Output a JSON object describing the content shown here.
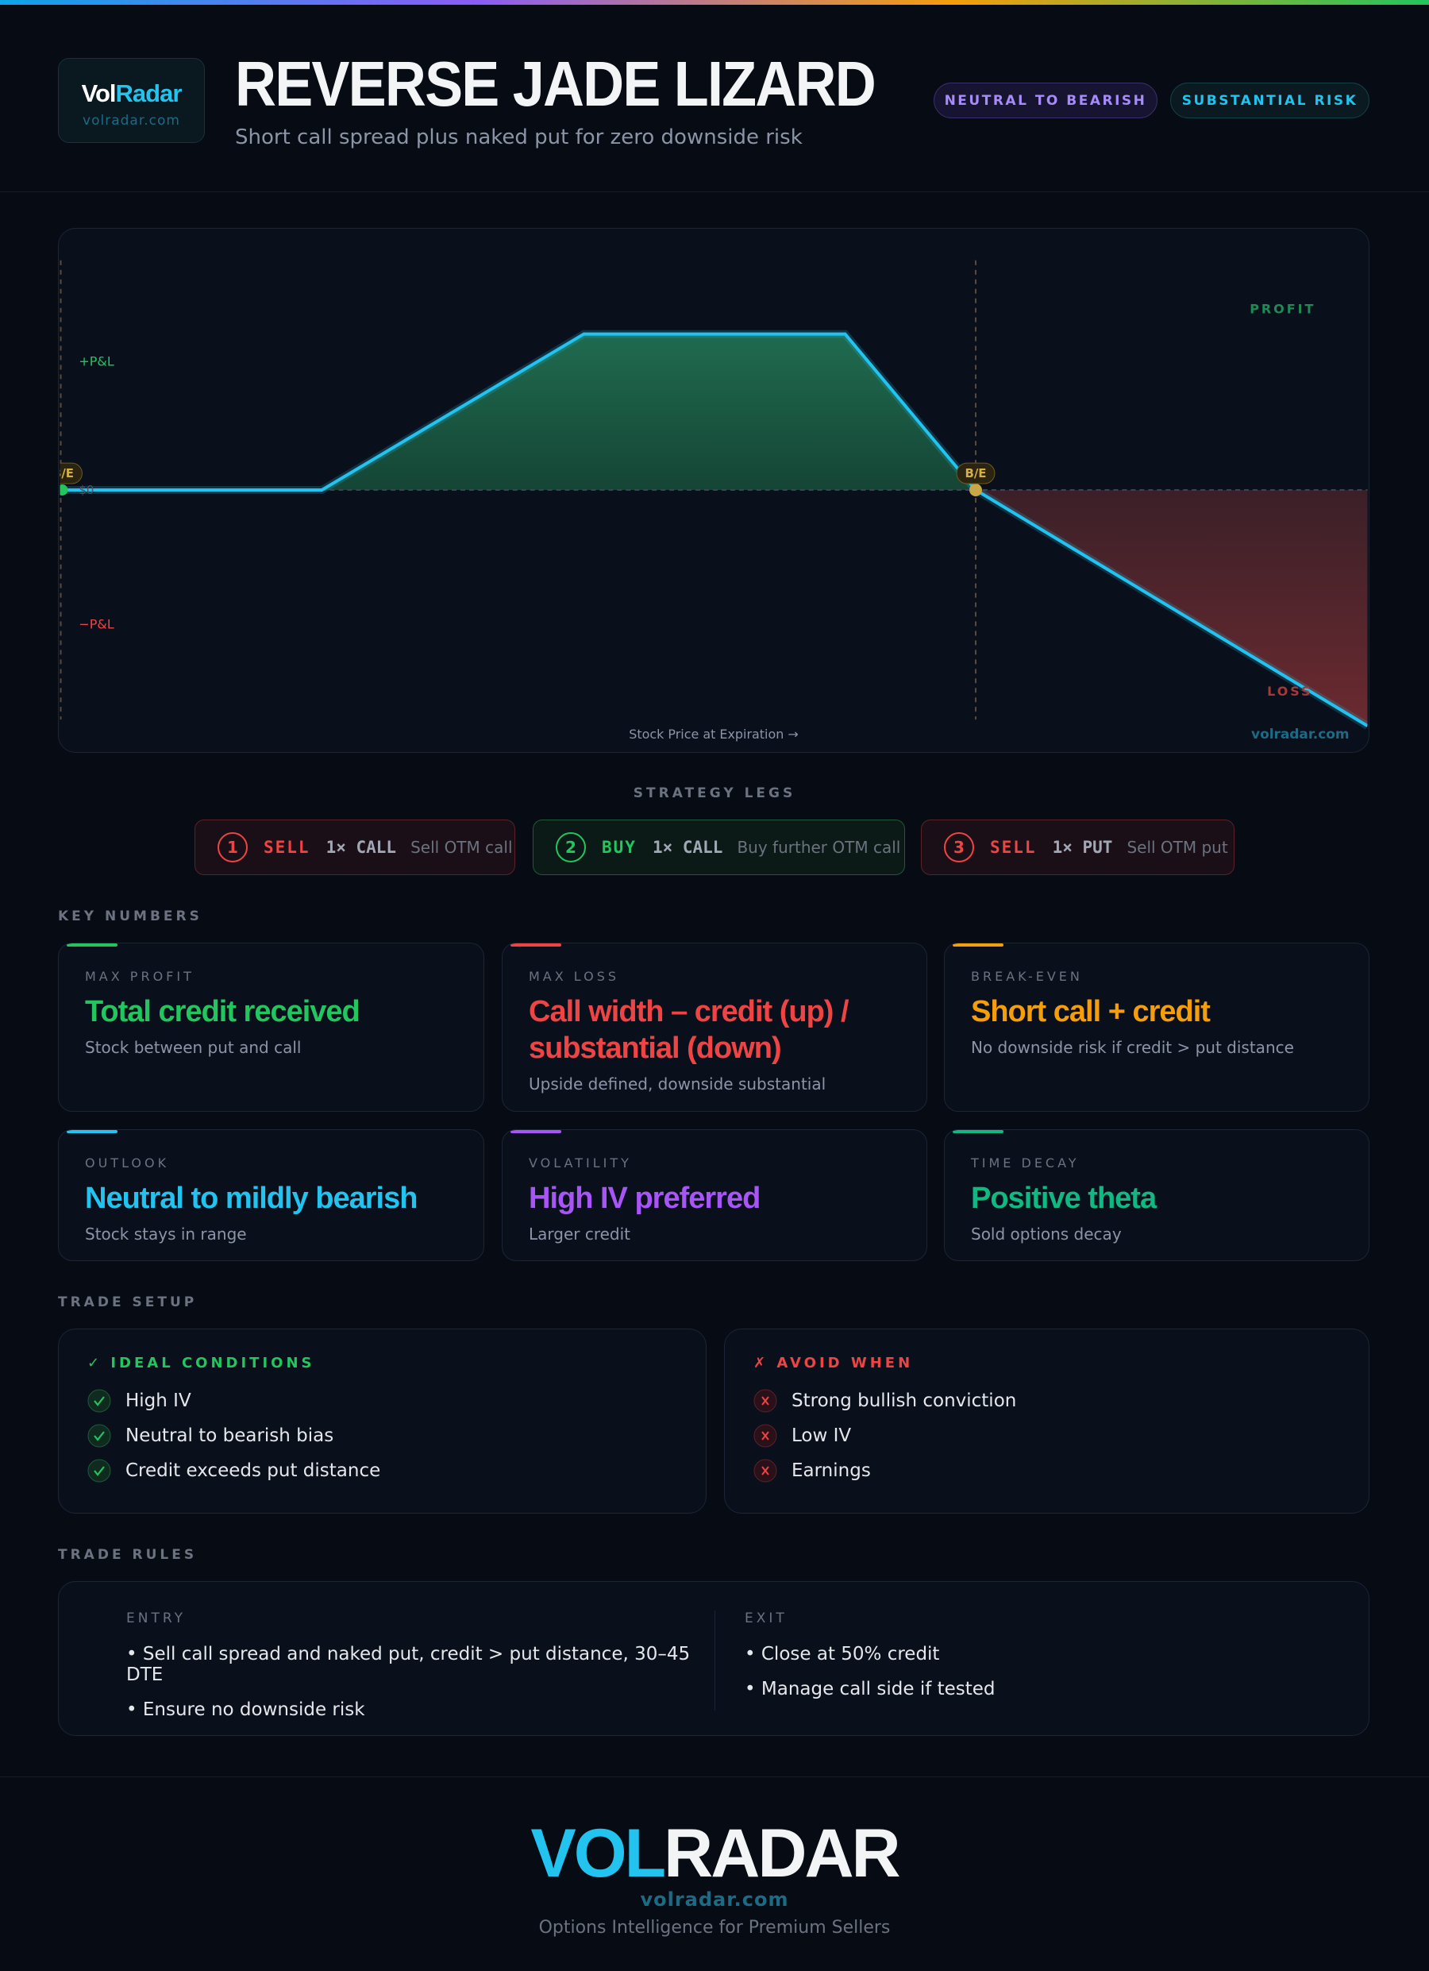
{
  "header": {
    "logo_vol": "Vol",
    "logo_radar": "Radar",
    "logo_url": "volradar.com",
    "title": "REVERSE JADE LIZARD",
    "subtitle": "Short call spread plus naked put for zero downside risk",
    "badges": [
      "NEUTRAL TO BEARISH",
      "SUBSTANTIAL RISK"
    ]
  },
  "payoff": {
    "profit_label": "PROFIT",
    "loss_label": "LOSS",
    "pos_pnl": "+P&L",
    "neg_pnl": "−P&L",
    "zero": "$0",
    "breakeven": "B/E",
    "x_axis_label": "Stock Price at Expiration →",
    "watermark": "volradar.com"
  },
  "legs": {
    "title": "STRATEGY LEGS",
    "items": [
      {
        "number": "1",
        "action": "SELL",
        "qty": "1× CALL",
        "desc": "Sell OTM call"
      },
      {
        "number": "2",
        "action": "BUY",
        "qty": "1× CALL",
        "desc": "Buy further OTM call"
      },
      {
        "number": "3",
        "action": "SELL",
        "qty": "1× PUT",
        "desc": "Sell OTM put"
      }
    ]
  },
  "key_numbers": {
    "title": "KEY NUMBERS",
    "cards": [
      {
        "label": "MAX PROFIT",
        "value": "Total credit received",
        "desc": "Stock between put and call"
      },
      {
        "label": "MAX LOSS",
        "value": "Call width – credit (up) / substantial (down)",
        "desc": "Upside defined, downside substantial"
      },
      {
        "label": "BREAK-EVEN",
        "value": "Short call + credit",
        "desc": "No downside risk if credit > put distance"
      },
      {
        "label": "OUTLOOK",
        "value": "Neutral to mildly bearish",
        "desc": "Stock stays in range"
      },
      {
        "label": "VOLATILITY",
        "value": "High IV preferred",
        "desc": "Larger credit"
      },
      {
        "label": "TIME DECAY",
        "value": "Positive theta",
        "desc": "Sold options decay"
      }
    ]
  },
  "trade_setup": {
    "title": "TRADE SETUP",
    "ideal": {
      "title": "✓ IDEAL CONDITIONS",
      "items": [
        "High IV",
        "Neutral to bearish bias",
        "Credit exceeds put distance"
      ]
    },
    "avoid": {
      "title": "✗ AVOID WHEN",
      "items": [
        "Strong bullish conviction",
        "Low IV",
        "Earnings"
      ]
    }
  },
  "trade_rules": {
    "title": "TRADE RULES",
    "entry": {
      "title": "ENTRY",
      "items": [
        "• Sell call spread and naked put, credit > put distance, 30–45 DTE",
        "• Ensure no downside risk"
      ]
    },
    "exit": {
      "title": "EXIT",
      "items": [
        "• Close at 50% credit",
        "• Manage call side if tested"
      ]
    }
  },
  "footer": {
    "logo_vol": "VOL",
    "logo_radar": "RADAR",
    "url": "volradar.com",
    "tagline": "Options Intelligence for Premium Sellers"
  }
}
